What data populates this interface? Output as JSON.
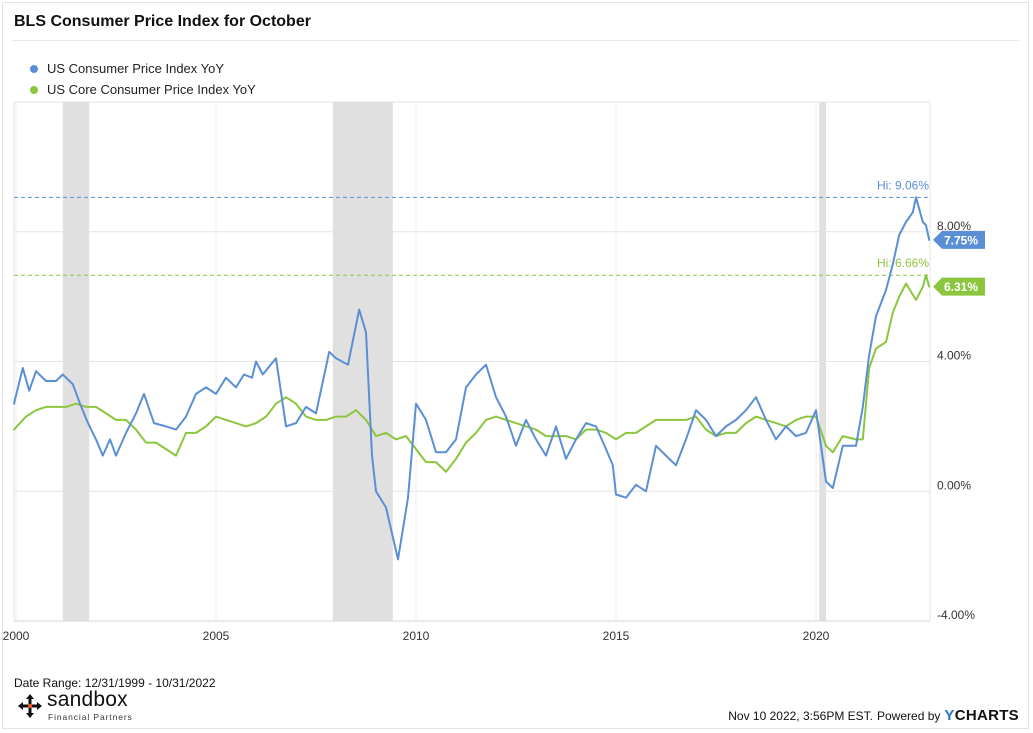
{
  "header": {
    "title": "BLS Consumer Price Index for October"
  },
  "legend": [
    {
      "label": "US Consumer Price Index YoY",
      "color": "#5b8fd5"
    },
    {
      "label": "US Core Consumer Price Index YoY",
      "color": "#8cc63f"
    }
  ],
  "footer": {
    "date_range": "Date Range: 12/31/1999 - 10/31/2022",
    "timestamp": "Nov 10 2022, 3:56PM EST.",
    "powered_by": "Powered by",
    "ycharts_y": "Y",
    "ycharts_rest": "CHARTS",
    "logo_word": "sandbox",
    "logo_sub": "Financial Partners"
  },
  "chart_data": {
    "type": "line",
    "x_range": [
      1999.95,
      2022.85
    ],
    "y_range": [
      -4,
      12
    ],
    "x_ticks": [
      {
        "value": 2000,
        "label": "2000"
      },
      {
        "value": 2005,
        "label": "2005"
      },
      {
        "value": 2010,
        "label": "2010"
      },
      {
        "value": 2015,
        "label": "2015"
      },
      {
        "value": 2020,
        "label": "2020"
      }
    ],
    "y_ticks": [
      {
        "value": 8,
        "label": "8.00%"
      },
      {
        "value": 4,
        "label": "4.00%"
      },
      {
        "value": 0,
        "label": "0.00%"
      },
      {
        "value": -4,
        "label": "-4.00%"
      }
    ],
    "recessions": [
      [
        2001.17,
        2001.83
      ],
      [
        2007.92,
        2009.42
      ],
      [
        2020.08,
        2020.25
      ]
    ],
    "series": [
      {
        "name": "US Consumer Price Index YoY",
        "color": "#5b8fd5",
        "end_label": "7.75%",
        "hi_label": "Hi: 9.06%",
        "hi_value": 9.06,
        "points": [
          [
            1999.95,
            2.7
          ],
          [
            2000.17,
            3.8
          ],
          [
            2000.33,
            3.1
          ],
          [
            2000.5,
            3.7
          ],
          [
            2000.75,
            3.4
          ],
          [
            2001.0,
            3.4
          ],
          [
            2001.17,
            3.6
          ],
          [
            2001.42,
            3.3
          ],
          [
            2001.6,
            2.7
          ],
          [
            2001.8,
            2.1
          ],
          [
            2002.0,
            1.6
          ],
          [
            2002.17,
            1.1
          ],
          [
            2002.35,
            1.6
          ],
          [
            2002.5,
            1.1
          ],
          [
            2002.75,
            1.8
          ],
          [
            2003.0,
            2.4
          ],
          [
            2003.2,
            3.0
          ],
          [
            2003.45,
            2.1
          ],
          [
            2003.75,
            2.0
          ],
          [
            2004.0,
            1.9
          ],
          [
            2004.25,
            2.3
          ],
          [
            2004.5,
            3.0
          ],
          [
            2004.75,
            3.2
          ],
          [
            2005.0,
            3.0
          ],
          [
            2005.25,
            3.5
          ],
          [
            2005.5,
            3.2
          ],
          [
            2005.7,
            3.6
          ],
          [
            2005.9,
            3.5
          ],
          [
            2006.0,
            4.0
          ],
          [
            2006.17,
            3.6
          ],
          [
            2006.5,
            4.1
          ],
          [
            2006.75,
            2.0
          ],
          [
            2007.0,
            2.1
          ],
          [
            2007.25,
            2.6
          ],
          [
            2007.5,
            2.4
          ],
          [
            2007.83,
            4.3
          ],
          [
            2008.0,
            4.1
          ],
          [
            2008.3,
            3.9
          ],
          [
            2008.58,
            5.6
          ],
          [
            2008.75,
            4.9
          ],
          [
            2008.9,
            1.1
          ],
          [
            2009.0,
            0.0
          ],
          [
            2009.25,
            -0.5
          ],
          [
            2009.55,
            -2.1
          ],
          [
            2009.8,
            -0.2
          ],
          [
            2010.0,
            2.7
          ],
          [
            2010.25,
            2.2
          ],
          [
            2010.5,
            1.2
          ],
          [
            2010.75,
            1.2
          ],
          [
            2011.0,
            1.6
          ],
          [
            2011.25,
            3.2
          ],
          [
            2011.5,
            3.6
          ],
          [
            2011.75,
            3.9
          ],
          [
            2012.0,
            2.9
          ],
          [
            2012.25,
            2.3
          ],
          [
            2012.5,
            1.4
          ],
          [
            2012.75,
            2.2
          ],
          [
            2013.0,
            1.6
          ],
          [
            2013.25,
            1.1
          ],
          [
            2013.5,
            2.0
          ],
          [
            2013.75,
            1.0
          ],
          [
            2014.0,
            1.6
          ],
          [
            2014.25,
            2.1
          ],
          [
            2014.5,
            2.0
          ],
          [
            2014.75,
            1.3
          ],
          [
            2014.92,
            0.8
          ],
          [
            2015.0,
            -0.1
          ],
          [
            2015.25,
            -0.2
          ],
          [
            2015.5,
            0.2
          ],
          [
            2015.75,
            0.0
          ],
          [
            2016.0,
            1.4
          ],
          [
            2016.25,
            1.1
          ],
          [
            2016.5,
            0.8
          ],
          [
            2016.75,
            1.6
          ],
          [
            2017.0,
            2.5
          ],
          [
            2017.25,
            2.2
          ],
          [
            2017.5,
            1.7
          ],
          [
            2017.75,
            2.0
          ],
          [
            2018.0,
            2.2
          ],
          [
            2018.25,
            2.5
          ],
          [
            2018.5,
            2.9
          ],
          [
            2018.75,
            2.2
          ],
          [
            2019.0,
            1.6
          ],
          [
            2019.25,
            2.0
          ],
          [
            2019.5,
            1.7
          ],
          [
            2019.75,
            1.8
          ],
          [
            2020.0,
            2.5
          ],
          [
            2020.25,
            0.3
          ],
          [
            2020.42,
            0.1
          ],
          [
            2020.67,
            1.4
          ],
          [
            2021.0,
            1.4
          ],
          [
            2021.17,
            2.6
          ],
          [
            2021.33,
            4.2
          ],
          [
            2021.5,
            5.4
          ],
          [
            2021.75,
            6.2
          ],
          [
            2021.92,
            7.0
          ],
          [
            2022.08,
            7.9
          ],
          [
            2022.25,
            8.3
          ],
          [
            2022.42,
            8.6
          ],
          [
            2022.5,
            9.06
          ],
          [
            2022.67,
            8.3
          ],
          [
            2022.75,
            8.2
          ],
          [
            2022.83,
            7.75
          ]
        ]
      },
      {
        "name": "US Core Consumer Price Index YoY",
        "color": "#8cc63f",
        "end_label": "6.31%",
        "hi_label": "Hi: 6.66%",
        "hi_value": 6.66,
        "points": [
          [
            1999.95,
            1.9
          ],
          [
            2000.25,
            2.3
          ],
          [
            2000.5,
            2.5
          ],
          [
            2000.75,
            2.6
          ],
          [
            2001.0,
            2.6
          ],
          [
            2001.25,
            2.6
          ],
          [
            2001.5,
            2.7
          ],
          [
            2001.75,
            2.6
          ],
          [
            2002.0,
            2.6
          ],
          [
            2002.25,
            2.4
          ],
          [
            2002.5,
            2.2
          ],
          [
            2002.75,
            2.2
          ],
          [
            2003.0,
            1.9
          ],
          [
            2003.25,
            1.5
          ],
          [
            2003.5,
            1.5
          ],
          [
            2003.75,
            1.3
          ],
          [
            2004.0,
            1.1
          ],
          [
            2004.25,
            1.8
          ],
          [
            2004.5,
            1.8
          ],
          [
            2004.75,
            2.0
          ],
          [
            2005.0,
            2.3
          ],
          [
            2005.25,
            2.2
          ],
          [
            2005.5,
            2.1
          ],
          [
            2005.75,
            2.0
          ],
          [
            2006.0,
            2.1
          ],
          [
            2006.25,
            2.3
          ],
          [
            2006.5,
            2.7
          ],
          [
            2006.75,
            2.9
          ],
          [
            2007.0,
            2.7
          ],
          [
            2007.25,
            2.3
          ],
          [
            2007.5,
            2.2
          ],
          [
            2007.75,
            2.2
          ],
          [
            2008.0,
            2.3
          ],
          [
            2008.25,
            2.3
          ],
          [
            2008.5,
            2.5
          ],
          [
            2008.75,
            2.2
          ],
          [
            2009.0,
            1.7
          ],
          [
            2009.25,
            1.8
          ],
          [
            2009.5,
            1.6
          ],
          [
            2009.75,
            1.7
          ],
          [
            2010.0,
            1.3
          ],
          [
            2010.25,
            0.9
          ],
          [
            2010.5,
            0.9
          ],
          [
            2010.75,
            0.6
          ],
          [
            2011.0,
            1.0
          ],
          [
            2011.25,
            1.5
          ],
          [
            2011.5,
            1.8
          ],
          [
            2011.75,
            2.2
          ],
          [
            2012.0,
            2.3
          ],
          [
            2012.25,
            2.2
          ],
          [
            2012.5,
            2.1
          ],
          [
            2012.75,
            2.0
          ],
          [
            2013.0,
            1.9
          ],
          [
            2013.25,
            1.7
          ],
          [
            2013.5,
            1.7
          ],
          [
            2013.75,
            1.7
          ],
          [
            2014.0,
            1.6
          ],
          [
            2014.25,
            1.9
          ],
          [
            2014.5,
            1.9
          ],
          [
            2014.75,
            1.8
          ],
          [
            2015.0,
            1.6
          ],
          [
            2015.25,
            1.8
          ],
          [
            2015.5,
            1.8
          ],
          [
            2015.75,
            2.0
          ],
          [
            2016.0,
            2.2
          ],
          [
            2016.25,
            2.2
          ],
          [
            2016.5,
            2.2
          ],
          [
            2016.75,
            2.2
          ],
          [
            2017.0,
            2.3
          ],
          [
            2017.25,
            1.9
          ],
          [
            2017.5,
            1.7
          ],
          [
            2017.75,
            1.8
          ],
          [
            2018.0,
            1.8
          ],
          [
            2018.25,
            2.1
          ],
          [
            2018.5,
            2.3
          ],
          [
            2018.75,
            2.2
          ],
          [
            2019.0,
            2.1
          ],
          [
            2019.25,
            2.0
          ],
          [
            2019.5,
            2.2
          ],
          [
            2019.75,
            2.3
          ],
          [
            2020.0,
            2.3
          ],
          [
            2020.25,
            1.4
          ],
          [
            2020.42,
            1.2
          ],
          [
            2020.67,
            1.7
          ],
          [
            2021.0,
            1.6
          ],
          [
            2021.17,
            1.6
          ],
          [
            2021.33,
            3.8
          ],
          [
            2021.5,
            4.4
          ],
          [
            2021.75,
            4.6
          ],
          [
            2021.92,
            5.5
          ],
          [
            2022.08,
            6.0
          ],
          [
            2022.25,
            6.4
          ],
          [
            2022.5,
            5.9
          ],
          [
            2022.67,
            6.3
          ],
          [
            2022.75,
            6.66
          ],
          [
            2022.83,
            6.31
          ]
        ]
      }
    ]
  }
}
